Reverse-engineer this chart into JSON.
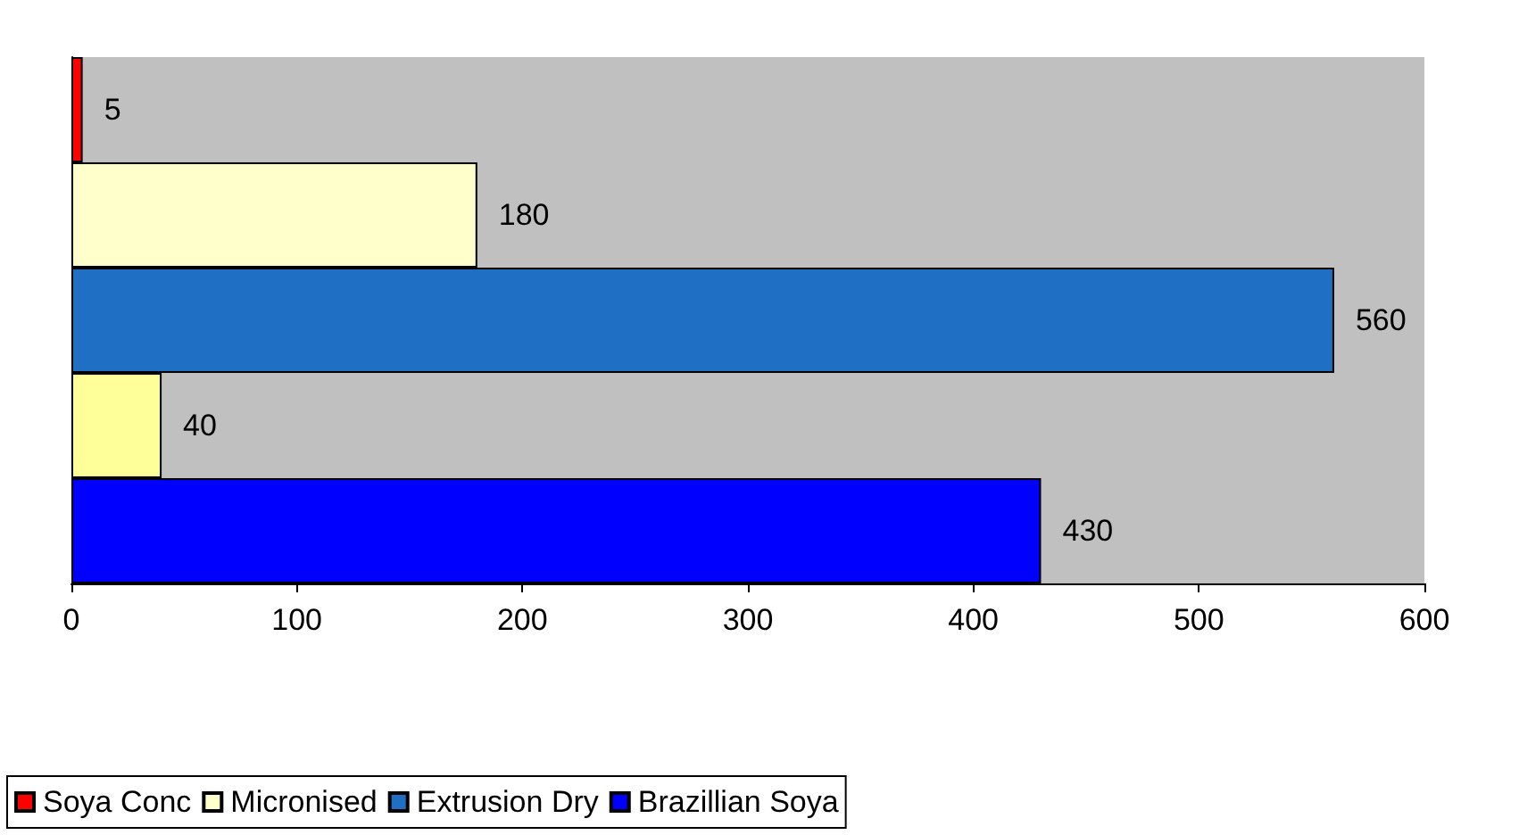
{
  "chart_data": {
    "type": "bar",
    "orientation": "horizontal",
    "categories": [
      null
    ],
    "series": [
      {
        "name": "Soya Conc",
        "color": "#ff0000",
        "values": [
          5
        ]
      },
      {
        "name": "Micronised",
        "color": "#ffffcc",
        "values": [
          180
        ]
      },
      {
        "name": "Extrusion Dry",
        "color": "#1f6fc4",
        "values": [
          560
        ]
      },
      {
        "color": "#ffff99",
        "values": [
          40
        ]
      },
      {
        "name": "Brazillian Soya",
        "color": "#0000ff",
        "values": [
          430
        ]
      }
    ],
    "xlim": [
      0,
      600
    ],
    "xticks": [
      0,
      100,
      200,
      300,
      400,
      500,
      600
    ],
    "data_labels": true,
    "grid": false,
    "legend": "bottom"
  }
}
